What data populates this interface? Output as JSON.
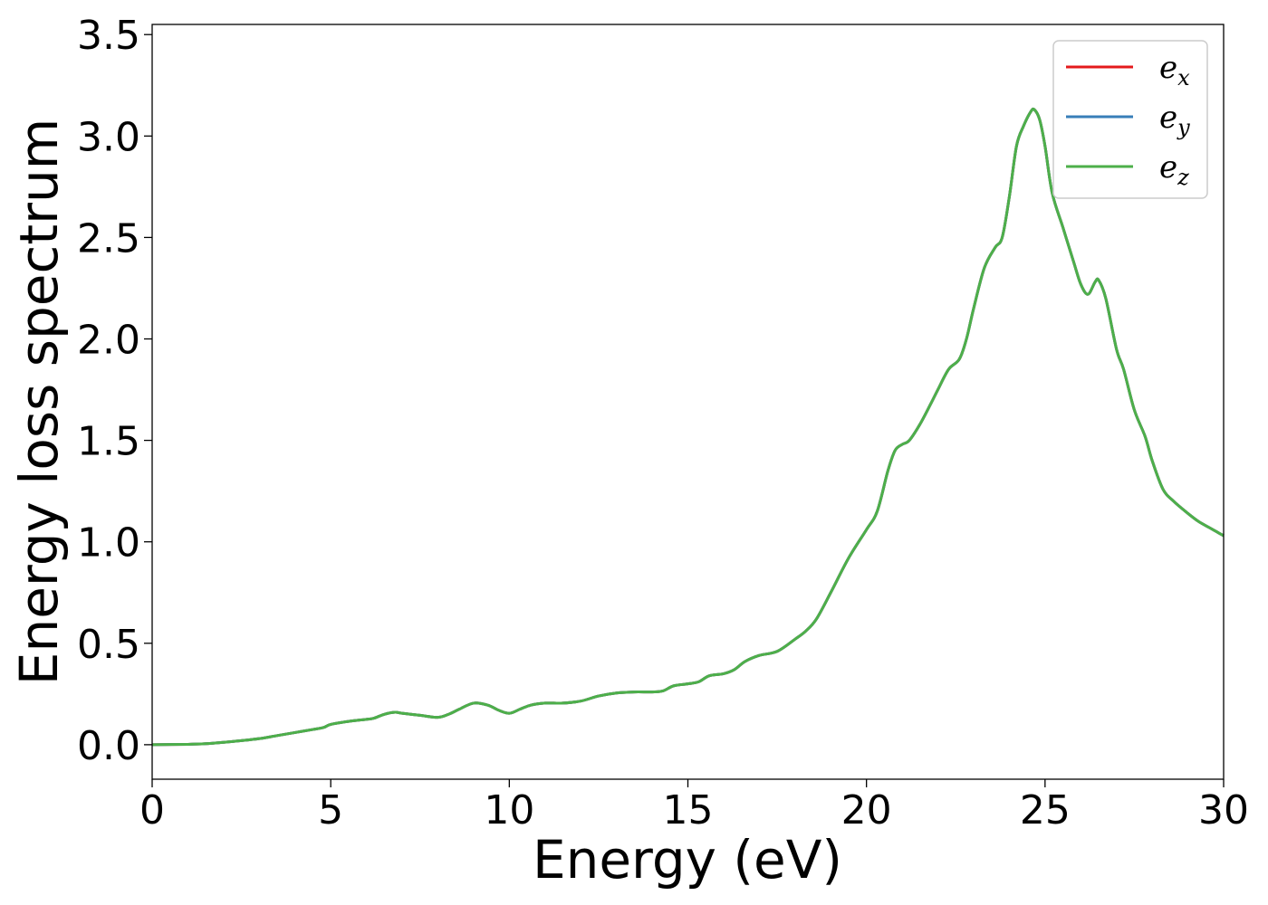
{
  "chart_data": {
    "type": "line",
    "title": "",
    "xlabel": "Energy (eV)",
    "ylabel": "Energy loss spectrum",
    "xlim": [
      0,
      30
    ],
    "ylim": [
      -0.17,
      3.55
    ],
    "xticks": [
      0,
      5,
      10,
      15,
      20,
      25,
      30
    ],
    "xtick_labels": [
      "0",
      "5",
      "10",
      "15",
      "20",
      "25",
      "30"
    ],
    "yticks": [
      0.0,
      0.5,
      1.0,
      1.5,
      2.0,
      2.5,
      3.0,
      3.5
    ],
    "ytick_labels": [
      "0.0",
      "0.5",
      "1.0",
      "1.5",
      "2.0",
      "2.5",
      "3.0",
      "3.5"
    ],
    "grid": false,
    "legend_position": "top-right",
    "x": [
      0,
      1,
      1.5,
      2,
      2.5,
      3,
      3.5,
      4,
      4.5,
      4.8,
      5,
      5.5,
      6,
      6.2,
      6.5,
      6.8,
      7,
      7.5,
      8,
      8.3,
      8.6,
      9,
      9.4,
      9.7,
      10,
      10.3,
      10.6,
      11,
      11.5,
      12,
      12.5,
      13,
      13.5,
      14,
      14.3,
      14.6,
      15,
      15.3,
      15.6,
      16,
      16.3,
      16.6,
      17,
      17.5,
      18,
      18.3,
      18.6,
      19,
      19.5,
      20,
      20.3,
      20.6,
      20.8,
      21,
      21.2,
      21.5,
      21.8,
      22,
      22.3,
      22.6,
      22.8,
      23,
      23.3,
      23.6,
      23.8,
      24,
      24.2,
      24.4,
      24.6,
      24.7,
      24.85,
      25,
      25.2,
      25.5,
      25.8,
      26,
      26.2,
      26.4,
      26.5,
      26.7,
      27,
      27.2,
      27.5,
      27.8,
      28,
      28.3,
      28.6,
      29,
      29.3,
      29.6,
      29.8,
      30
    ],
    "series": [
      {
        "name": "x",
        "color": "#e41a1c",
        "values": [
          0,
          0.002,
          0.005,
          0.012,
          0.02,
          0.03,
          0.045,
          0.06,
          0.075,
          0.085,
          0.1,
          0.115,
          0.125,
          0.13,
          0.15,
          0.16,
          0.155,
          0.145,
          0.135,
          0.15,
          0.175,
          0.205,
          0.195,
          0.17,
          0.155,
          0.175,
          0.195,
          0.205,
          0.205,
          0.215,
          0.24,
          0.255,
          0.26,
          0.26,
          0.265,
          0.29,
          0.3,
          0.31,
          0.34,
          0.35,
          0.37,
          0.41,
          0.44,
          0.46,
          0.52,
          0.56,
          0.62,
          0.75,
          0.92,
          1.06,
          1.15,
          1.35,
          1.45,
          1.48,
          1.5,
          1.58,
          1.68,
          1.75,
          1.85,
          1.9,
          2.0,
          2.15,
          2.35,
          2.45,
          2.5,
          2.7,
          2.95,
          3.05,
          3.12,
          3.13,
          3.08,
          2.95,
          2.72,
          2.55,
          2.38,
          2.27,
          2.22,
          2.28,
          2.29,
          2.2,
          1.95,
          1.85,
          1.65,
          1.52,
          1.4,
          1.26,
          1.2,
          1.14,
          1.1,
          1.07,
          1.05,
          1.03
        ]
      },
      {
        "name": "y",
        "color": "#377eb8",
        "values": [
          0,
          0.002,
          0.005,
          0.012,
          0.02,
          0.03,
          0.045,
          0.06,
          0.075,
          0.085,
          0.1,
          0.115,
          0.125,
          0.13,
          0.15,
          0.16,
          0.155,
          0.145,
          0.135,
          0.15,
          0.175,
          0.205,
          0.195,
          0.17,
          0.155,
          0.175,
          0.195,
          0.205,
          0.205,
          0.215,
          0.24,
          0.255,
          0.26,
          0.26,
          0.265,
          0.29,
          0.3,
          0.31,
          0.34,
          0.35,
          0.37,
          0.41,
          0.44,
          0.46,
          0.52,
          0.56,
          0.62,
          0.75,
          0.92,
          1.06,
          1.15,
          1.35,
          1.45,
          1.48,
          1.5,
          1.58,
          1.68,
          1.75,
          1.85,
          1.9,
          2.0,
          2.15,
          2.35,
          2.45,
          2.5,
          2.7,
          2.95,
          3.05,
          3.12,
          3.13,
          3.08,
          2.95,
          2.72,
          2.55,
          2.38,
          2.27,
          2.22,
          2.28,
          2.29,
          2.2,
          1.95,
          1.85,
          1.65,
          1.52,
          1.4,
          1.26,
          1.2,
          1.14,
          1.1,
          1.07,
          1.05,
          1.03
        ]
      },
      {
        "name": "z",
        "color": "#4daf4a",
        "values": [
          0,
          0.002,
          0.005,
          0.012,
          0.02,
          0.03,
          0.045,
          0.06,
          0.075,
          0.085,
          0.1,
          0.115,
          0.125,
          0.13,
          0.15,
          0.16,
          0.155,
          0.145,
          0.135,
          0.15,
          0.175,
          0.205,
          0.195,
          0.17,
          0.155,
          0.175,
          0.195,
          0.205,
          0.205,
          0.215,
          0.24,
          0.255,
          0.26,
          0.26,
          0.265,
          0.29,
          0.3,
          0.31,
          0.34,
          0.35,
          0.37,
          0.41,
          0.44,
          0.46,
          0.52,
          0.56,
          0.62,
          0.75,
          0.92,
          1.06,
          1.15,
          1.35,
          1.45,
          1.48,
          1.5,
          1.58,
          1.68,
          1.75,
          1.85,
          1.9,
          2.0,
          2.15,
          2.35,
          2.45,
          2.5,
          2.7,
          2.95,
          3.05,
          3.12,
          3.13,
          3.08,
          2.95,
          2.72,
          2.55,
          2.38,
          2.27,
          2.22,
          2.28,
          2.29,
          2.2,
          1.95,
          1.85,
          1.65,
          1.52,
          1.4,
          1.26,
          1.2,
          1.14,
          1.1,
          1.07,
          1.05,
          1.03
        ]
      }
    ],
    "legend": [
      {
        "base": "e",
        "sub": "x",
        "color": "#e41a1c"
      },
      {
        "base": "e",
        "sub": "y",
        "color": "#377eb8"
      },
      {
        "base": "e",
        "sub": "z",
        "color": "#4daf4a"
      }
    ]
  }
}
